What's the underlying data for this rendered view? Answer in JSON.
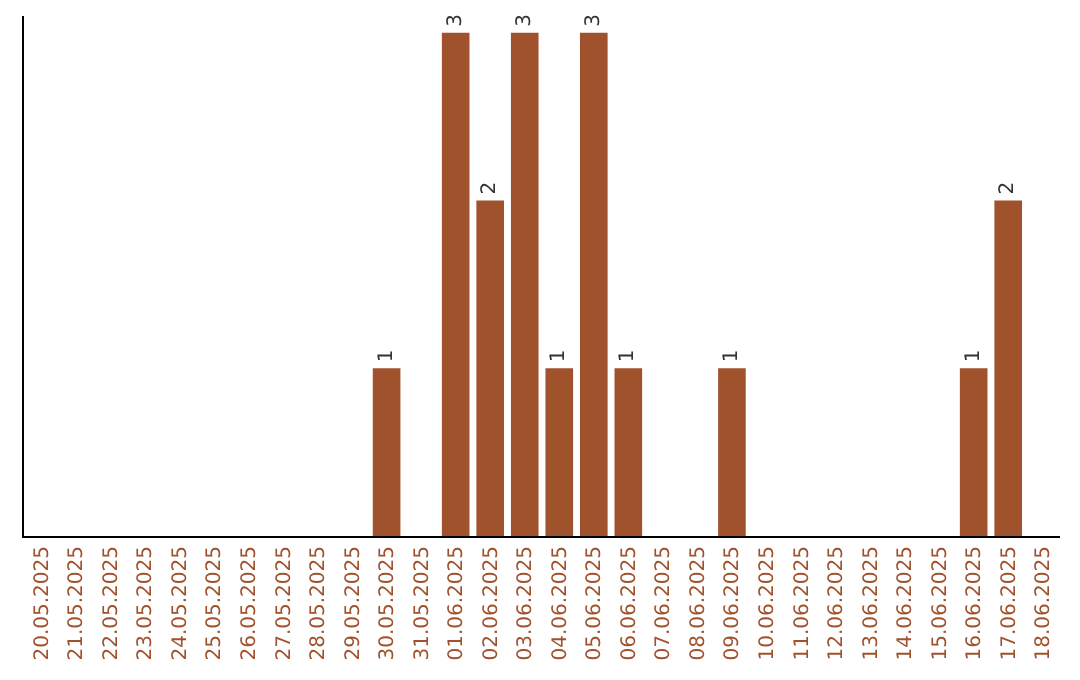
{
  "chart_data": {
    "type": "bar",
    "categories": [
      "20.05.2025",
      "21.05.2025",
      "22.05.2025",
      "23.05.2025",
      "24.05.2025",
      "25.05.2025",
      "26.05.2025",
      "27.05.2025",
      "28.05.2025",
      "29.05.2025",
      "30.05.2025",
      "31.05.2025",
      "01.06.2025",
      "02.06.2025",
      "03.06.2025",
      "04.06.2025",
      "05.06.2025",
      "06.06.2025",
      "07.06.2025",
      "08.06.2025",
      "09.06.2025",
      "10.06.2025",
      "11.06.2025",
      "12.06.2025",
      "13.06.2025",
      "14.06.2025",
      "15.06.2025",
      "16.06.2025",
      "17.06.2025",
      "18.06.2025"
    ],
    "values": [
      0,
      0,
      0,
      0,
      0,
      0,
      0,
      0,
      0,
      0,
      1,
      0,
      3,
      2,
      3,
      1,
      3,
      1,
      0,
      0,
      1,
      0,
      0,
      0,
      0,
      0,
      0,
      1,
      2,
      0
    ],
    "value_labels": [
      null,
      null,
      null,
      null,
      null,
      null,
      null,
      null,
      null,
      null,
      "1",
      null,
      "3",
      "2",
      "3",
      "1",
      "3",
      "1",
      null,
      null,
      "1",
      null,
      null,
      null,
      null,
      null,
      null,
      "1",
      "2",
      null
    ],
    "color": "#a0522d",
    "ylim": [
      0,
      3.1
    ],
    "tick_labels": "x"
  }
}
